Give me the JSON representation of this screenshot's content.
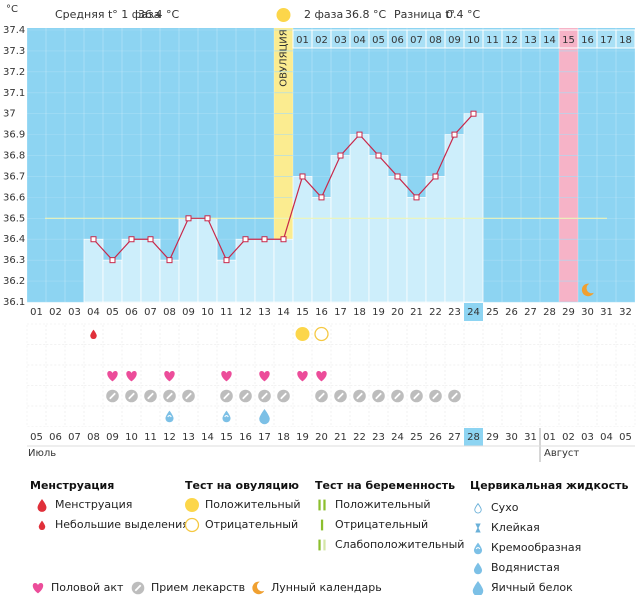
{
  "header": {
    "phase1_label": "Средняя t° 1 фаза",
    "phase1_value": "36.4 °C",
    "phase2_label": "2 фаза",
    "phase2_value": "36.8 °C",
    "diff_label": "Разница t°",
    "diff_value": "0.4 °C"
  },
  "chart_data": {
    "type": "line",
    "y_unit": "°C",
    "ylim": [
      36.1,
      37.4
    ],
    "yticks": [
      36.1,
      36.2,
      36.3,
      36.4,
      36.5,
      36.6,
      36.7,
      36.8,
      36.9,
      37,
      37.1,
      37.2,
      37.3,
      37.4
    ],
    "categories": [
      "01",
      "02",
      "03",
      "04",
      "05",
      "06",
      "07",
      "08",
      "09",
      "10",
      "11",
      "12",
      "13",
      "14",
      "15",
      "16",
      "17",
      "18",
      "19",
      "20",
      "21",
      "22",
      "23",
      "24",
      "25",
      "26",
      "27",
      "28",
      "29",
      "30",
      "31",
      "32"
    ],
    "phase2_days": [
      null,
      null,
      null,
      null,
      null,
      null,
      null,
      null,
      null,
      null,
      null,
      null,
      null,
      null,
      "01",
      "02",
      "03",
      "04",
      "05",
      "06",
      "07",
      "08",
      "09",
      "10",
      "11",
      "12",
      "13",
      "14",
      "15",
      "16",
      "17",
      "18"
    ],
    "values": [
      null,
      null,
      null,
      36.4,
      36.3,
      36.4,
      36.4,
      36.3,
      36.5,
      36.5,
      36.3,
      36.4,
      36.4,
      36.4,
      36.7,
      36.6,
      36.8,
      36.9,
      36.8,
      36.7,
      36.6,
      36.7,
      36.9,
      37.0,
      null,
      null,
      null,
      null,
      null,
      null,
      null,
      null
    ],
    "color": "#c8284a",
    "coverline": 36.5,
    "ovulation_label": "ОВУЛЯЦИЯ",
    "today_day": "24",
    "highlight_day": "29",
    "highlight_color": "#f6b3c7",
    "moon_day": "30",
    "dates": [
      "05",
      "06",
      "07",
      "08",
      "09",
      "10",
      "11",
      "12",
      "13",
      "14",
      "15",
      "16",
      "17",
      "18",
      "19",
      "20",
      "21",
      "22",
      "23",
      "24",
      "25",
      "26",
      "27",
      "28",
      "29",
      "30",
      "31",
      "01",
      "02",
      "03",
      "04",
      "05"
    ],
    "weekend": [
      true,
      true,
      false,
      false,
      false,
      false,
      false,
      true,
      true,
      false,
      false,
      false,
      false,
      false,
      true,
      true,
      false,
      false,
      false,
      false,
      false,
      true,
      true,
      false,
      false,
      false,
      false,
      false,
      true,
      true,
      false,
      false
    ],
    "months": [
      "Июль",
      "Август"
    ],
    "daily": {
      "menstruation": [
        null,
        null,
        null,
        "small",
        null,
        null,
        null,
        null,
        null,
        null,
        null,
        null,
        null,
        null,
        null,
        null,
        null,
        null,
        null,
        null,
        null,
        null,
        null,
        null,
        null,
        null,
        null,
        null,
        null,
        null,
        null,
        null
      ],
      "ovulation_test": [
        null,
        null,
        null,
        null,
        null,
        null,
        null,
        null,
        null,
        null,
        null,
        null,
        null,
        null,
        "positive",
        "negative",
        null,
        null,
        null,
        null,
        null,
        null,
        null,
        null,
        null,
        null,
        null,
        null,
        null,
        null,
        null,
        null
      ],
      "pregnancy_test": [
        null,
        null,
        null,
        null,
        null,
        null,
        null,
        null,
        null,
        null,
        null,
        null,
        null,
        null,
        null,
        null,
        null,
        null,
        null,
        null,
        null,
        null,
        null,
        null,
        null,
        null,
        null,
        null,
        null,
        null,
        null,
        null
      ],
      "intercourse": [
        null,
        null,
        null,
        null,
        true,
        true,
        null,
        true,
        null,
        null,
        true,
        null,
        true,
        null,
        true,
        true,
        null,
        null,
        null,
        null,
        null,
        null,
        null,
        null,
        null,
        null,
        null,
        null,
        null,
        null,
        null,
        null
      ],
      "medication": [
        null,
        null,
        null,
        null,
        true,
        true,
        true,
        true,
        true,
        null,
        true,
        true,
        true,
        true,
        null,
        true,
        true,
        true,
        true,
        true,
        true,
        true,
        true,
        null,
        null,
        null,
        null,
        null,
        null,
        null,
        null,
        null
      ],
      "cervical_fluid": [
        null,
        null,
        null,
        null,
        null,
        null,
        null,
        "creamy",
        null,
        null,
        "creamy",
        null,
        "egg_white",
        null,
        null,
        null,
        null,
        null,
        null,
        null,
        null,
        null,
        null,
        null,
        null,
        null,
        null,
        null,
        null,
        null,
        null,
        null
      ]
    }
  },
  "legend": {
    "sections": [
      {
        "title": "Менструация",
        "items": [
          {
            "icon": "heavy",
            "label": "Менструация"
          },
          {
            "icon": "small",
            "label": "Небольшие выделения"
          }
        ]
      },
      {
        "title": "Тест на овуляцию",
        "items": [
          {
            "icon": "positive",
            "label": "Положительный"
          },
          {
            "icon": "negative",
            "label": "Отрицательный"
          }
        ]
      },
      {
        "title": "Тест на беременность",
        "items": [
          {
            "icon": "preg_pos",
            "label": "Положительный"
          },
          {
            "icon": "preg_neg",
            "label": "Отрицательный"
          },
          {
            "icon": "preg_weak",
            "label": "Слабоположительный"
          }
        ]
      },
      {
        "title": "Цервикальная жидкость",
        "items": [
          {
            "icon": "dry",
            "label": "Сухо"
          },
          {
            "icon": "sticky",
            "label": "Клейкая"
          },
          {
            "icon": "creamy",
            "label": "Кремообразная"
          },
          {
            "icon": "watery",
            "label": "Водянистая"
          },
          {
            "icon": "egg_white",
            "label": "Яичный белок"
          }
        ]
      }
    ],
    "bottom": [
      {
        "icon": "heart",
        "label": "Половой акт"
      },
      {
        "icon": "pill",
        "label": "Прием лекарств"
      },
      {
        "icon": "moon",
        "label": "Лунный календарь"
      }
    ]
  }
}
